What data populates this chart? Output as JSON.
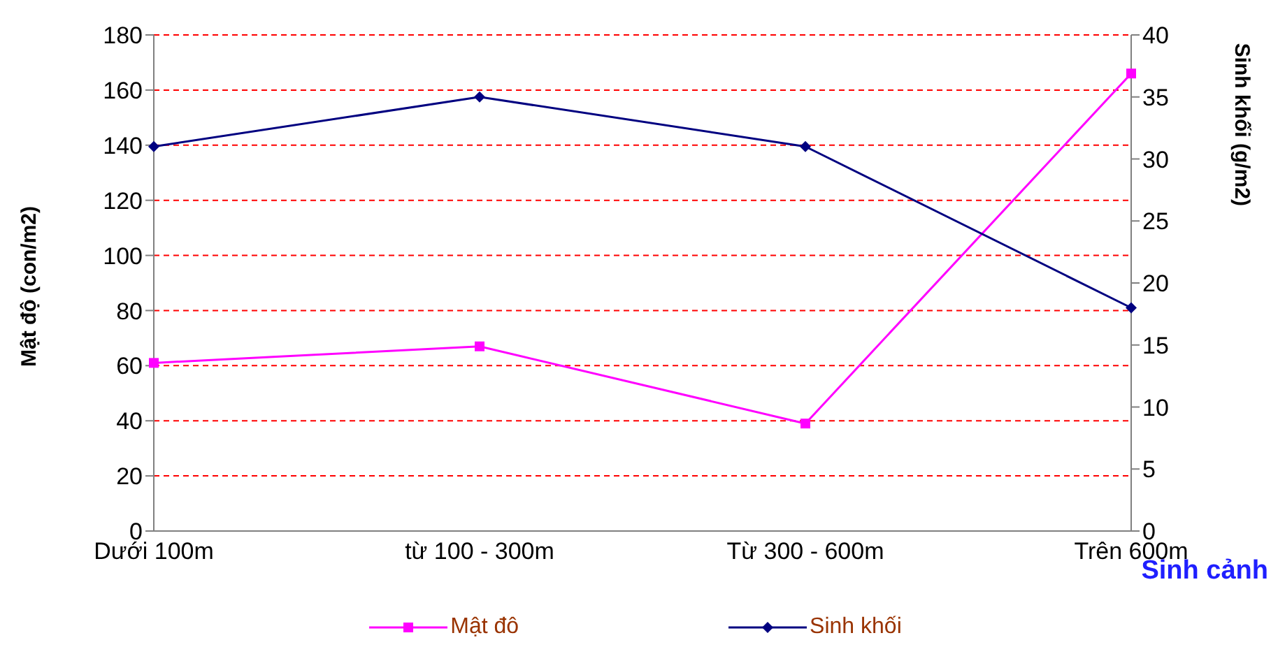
{
  "chart_data": {
    "type": "line",
    "categories": [
      "Dưới 100m",
      "từ 100 - 300m",
      "Từ 300 - 600m",
      "Trên 600m"
    ],
    "series": [
      {
        "name": "Mật đô",
        "color": "#ff00ff",
        "values": [
          61,
          67,
          39,
          166
        ],
        "marker": "square"
      },
      {
        "name": "Sinh khối",
        "color": "#000080",
        "values": [
          31,
          35,
          31,
          18
        ],
        "axis": "y2",
        "marker": "diamond"
      }
    ],
    "xlabel": "Sinh cảnh",
    "ylabel": "Mật độ (con/m2)",
    "y2label": "Sinh khối (g/m2)",
    "ylim": [
      0,
      180
    ],
    "yticks": [
      0,
      20,
      40,
      60,
      80,
      100,
      120,
      140,
      160,
      180
    ],
    "y2lim": [
      0,
      40
    ],
    "y2ticks": [
      0,
      5,
      10,
      15,
      20,
      25,
      30,
      35,
      40
    ],
    "grid": "y",
    "legend": "bottom"
  }
}
